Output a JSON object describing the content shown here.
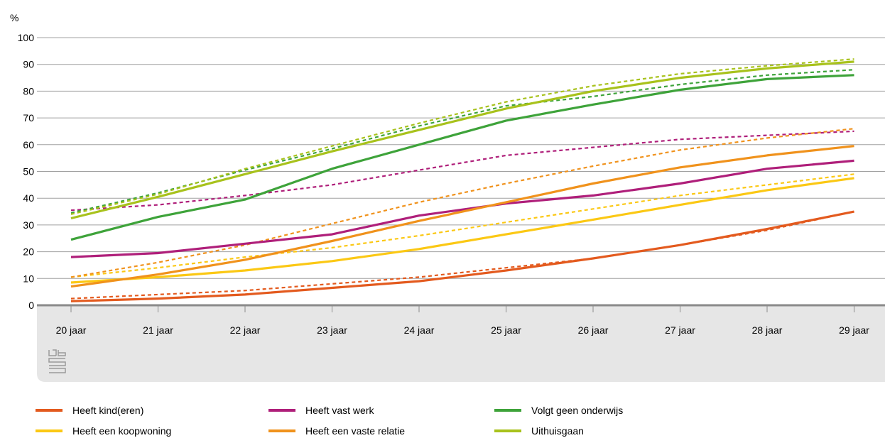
{
  "chart_data": {
    "type": "line",
    "ylabel": "%",
    "ylim": [
      0,
      100
    ],
    "yticks": [
      0,
      10,
      20,
      30,
      40,
      50,
      60,
      70,
      80,
      90,
      100
    ],
    "categories": [
      "20 jaar",
      "21 jaar",
      "22 jaar",
      "23 jaar",
      "24 jaar",
      "25 jaar",
      "26 jaar",
      "27 jaar",
      "28 jaar",
      "29 jaar"
    ],
    "grid": true,
    "legend_position": "bottom",
    "series": [
      {
        "name": "Heeft kind(eren)",
        "color": "#e35a1e",
        "style": "solid",
        "values": [
          1.5,
          2.5,
          4,
          6.5,
          9,
          13,
          17.5,
          22.5,
          28.5,
          35
        ]
      },
      {
        "name": "Heeft kind(eren)",
        "color": "#e35a1e",
        "style": "dotted",
        "values": [
          2.5,
          4,
          5.5,
          8,
          10.5,
          14,
          17.5,
          22.5,
          28,
          35
        ]
      },
      {
        "name": "Heeft een koopwoning",
        "color": "#fbc814",
        "style": "solid",
        "values": [
          8.5,
          10.5,
          13,
          16.5,
          21,
          26.5,
          32,
          37.5,
          43,
          47.5
        ]
      },
      {
        "name": "Heeft een koopwoning",
        "color": "#fbc814",
        "style": "dotted",
        "values": [
          10.5,
          14,
          18,
          21.5,
          26,
          31,
          36,
          41,
          45,
          49
        ]
      },
      {
        "name": "Heeft vast werk",
        "color": "#af1f7a",
        "style": "solid",
        "values": [
          18,
          19.5,
          23,
          26.5,
          33.5,
          38,
          41,
          45.5,
          51,
          54
        ]
      },
      {
        "name": "Heeft vast werk",
        "color": "#af1f7a",
        "style": "dotted",
        "values": [
          35.5,
          37.5,
          41,
          45,
          50.5,
          56,
          59,
          62,
          63.5,
          65
        ]
      },
      {
        "name": "Heeft een vaste relatie",
        "color": "#f0921c",
        "style": "solid",
        "values": [
          7,
          11.5,
          17,
          24,
          31.5,
          38.5,
          45.5,
          51.5,
          56,
          59.5
        ]
      },
      {
        "name": "Heeft een vaste relatie",
        "color": "#f0921c",
        "style": "dotted",
        "values": [
          10.5,
          16,
          22.5,
          30.5,
          38.5,
          45.5,
          52,
          58,
          62.5,
          66
        ]
      },
      {
        "name": "Volgt geen onderwijs",
        "color": "#3ea33a",
        "style": "solid",
        "values": [
          24.5,
          33,
          39.5,
          51,
          60,
          69,
          75,
          80.5,
          84.5,
          86
        ]
      },
      {
        "name": "Volgt geen onderwijs",
        "color": "#3ea33a",
        "style": "dotted",
        "values": [
          34.5,
          42,
          50.5,
          58.5,
          67,
          74.5,
          78,
          82.5,
          86,
          88
        ]
      },
      {
        "name": "Uithuisgaan",
        "color": "#a8c21c",
        "style": "solid",
        "values": [
          32.5,
          40.5,
          49,
          57.5,
          65.5,
          73.5,
          80,
          85,
          88.5,
          91
        ]
      },
      {
        "name": "Uithuisgaan",
        "color": "#a8c21c",
        "style": "dotted",
        "values": [
          34,
          41.5,
          51,
          59.5,
          68,
          76,
          82,
          86.5,
          89.5,
          92
        ]
      }
    ]
  },
  "legend": [
    {
      "label": "Heeft kind(eren)",
      "color": "#e35a1e"
    },
    {
      "label": "Heeft vast werk",
      "color": "#af1f7a"
    },
    {
      "label": "Volgt geen onderwijs",
      "color": "#3ea33a"
    },
    {
      "label": "Heeft een koopwoning",
      "color": "#fbc814"
    },
    {
      "label": "Heeft een vaste relatie",
      "color": "#f0921c"
    },
    {
      "label": "Uithuisgaan",
      "color": "#a8c21c"
    }
  ],
  "colors": {
    "gridline": "#a0a0a0",
    "axis": "#8a8a8a",
    "xaxis_band": "#e6e6e6",
    "logo": "#9a9a9a"
  },
  "icons": {
    "logo": "cbs-logo-icon"
  }
}
